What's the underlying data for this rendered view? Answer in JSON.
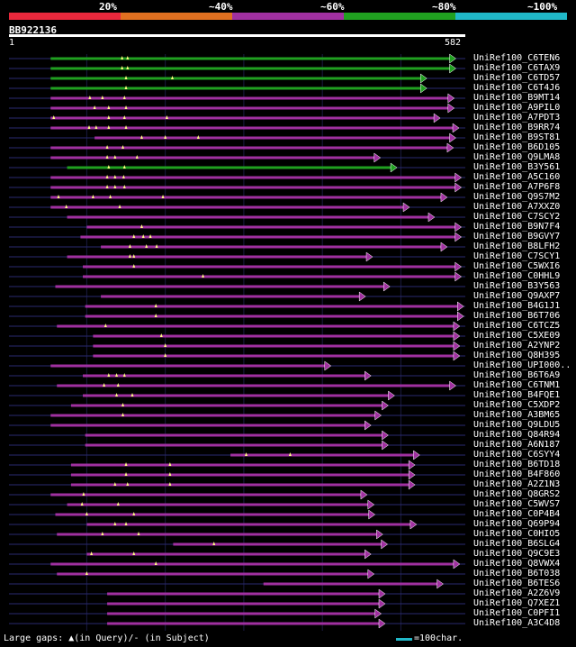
{
  "legend": {
    "segments": [
      {
        "label": "20%",
        "color": "#e8283c"
      },
      {
        "label": "~40%",
        "color": "#e07020"
      },
      {
        "label": "~60%",
        "color": "#a030a0"
      },
      {
        "label": "~80%",
        "color": "#20a020"
      },
      {
        "label": "~100%",
        "color": "#20b8c8"
      }
    ]
  },
  "query": {
    "id": "BB922136",
    "start": "1",
    "end": "582",
    "length": 582
  },
  "colors": {
    "low": "#e8283c",
    "mid": "#a030a0",
    "high": "#20a020",
    "line": "#2a2a70",
    "gap": "#ffff80"
  },
  "hits": [
    {
      "name": "UniRef100_C6TEN6",
      "start": 54,
      "end": 570,
      "cls": "high",
      "gaps": [
        145,
        152
      ]
    },
    {
      "name": "UniRef100_C6TAX9",
      "start": 54,
      "end": 570,
      "cls": "high",
      "gaps": [
        145,
        152
      ]
    },
    {
      "name": "UniRef100_C6TD57",
      "start": 54,
      "end": 533,
      "cls": "high",
      "gaps": [
        150,
        209
      ]
    },
    {
      "name": "UniRef100_C6T4J6",
      "start": 54,
      "end": 533,
      "cls": "high",
      "gaps": [
        150
      ]
    },
    {
      "name": "UniRef100_B9MT14",
      "start": 54,
      "end": 568,
      "cls": "mid",
      "gaps": [
        104,
        120,
        148
      ]
    },
    {
      "name": "UniRef100_A9PIL0",
      "start": 54,
      "end": 568,
      "cls": "mid",
      "gaps": [
        110,
        128,
        150
      ]
    },
    {
      "name": "UniRef100_A7PDT3",
      "start": 54,
      "end": 550,
      "cls": "mid",
      "gaps": [
        58,
        128,
        148,
        202
      ]
    },
    {
      "name": "UniRef100_B9RR74",
      "start": 54,
      "end": 574,
      "cls": "mid",
      "gaps": [
        103,
        112,
        128,
        150
      ]
    },
    {
      "name": "UniRef100_B9ST81",
      "start": 110,
      "end": 570,
      "cls": "mid",
      "gaps": [
        170,
        200,
        242
      ]
    },
    {
      "name": "UniRef100_B6D105",
      "start": 54,
      "end": 567,
      "cls": "mid",
      "gaps": [
        126,
        146
      ]
    },
    {
      "name": "UniRef100_Q9LMA8",
      "start": 54,
      "end": 474,
      "cls": "mid",
      "gaps": [
        126,
        136,
        164
      ]
    },
    {
      "name": "UniRef100_B3Y561",
      "start": 75,
      "end": 495,
      "cls": "high",
      "gaps": [
        128,
        148
      ]
    },
    {
      "name": "UniRef100_A5C160",
      "start": 54,
      "end": 577,
      "cls": "mid",
      "gaps": [
        126,
        136,
        147
      ]
    },
    {
      "name": "UniRef100_A7P6F8",
      "start": 54,
      "end": 577,
      "cls": "mid",
      "gaps": [
        126,
        136,
        148
      ]
    },
    {
      "name": "UniRef100_Q9S7M2",
      "start": 54,
      "end": 559,
      "cls": "mid",
      "gaps": [
        64,
        108,
        130,
        197
      ]
    },
    {
      "name": "UniRef100_A7XXZ0",
      "start": 54,
      "end": 511,
      "cls": "mid",
      "gaps": [
        74,
        142
      ]
    },
    {
      "name": "UniRef100_C7SCY2",
      "start": 75,
      "end": 543,
      "cls": "mid",
      "gaps": []
    },
    {
      "name": "UniRef100_B9N7F4",
      "start": 100,
      "end": 577,
      "cls": "mid",
      "gaps": [
        170
      ]
    },
    {
      "name": "UniRef100_B9GVY7",
      "start": 92,
      "end": 577,
      "cls": "mid",
      "gaps": [
        160,
        172,
        181
      ]
    },
    {
      "name": "UniRef100_B8LFH2",
      "start": 118,
      "end": 559,
      "cls": "mid",
      "gaps": [
        155,
        176,
        189
      ]
    },
    {
      "name": "UniRef100_C7SCY1",
      "start": 75,
      "end": 464,
      "cls": "mid",
      "gaps": [
        155,
        160
      ]
    },
    {
      "name": "UniRef100_C5WXI6",
      "start": 95,
      "end": 577,
      "cls": "mid",
      "gaps": [
        160
      ]
    },
    {
      "name": "UniRef100_C0HHL9",
      "start": 95,
      "end": 577,
      "cls": "mid",
      "gaps": [
        248
      ]
    },
    {
      "name": "UniRef100_B3Y563",
      "start": 60,
      "end": 486,
      "cls": "mid",
      "gaps": []
    },
    {
      "name": "UniRef100_Q9AXP7",
      "start": 118,
      "end": 455,
      "cls": "mid",
      "gaps": []
    },
    {
      "name": "UniRef100_B4G1J1",
      "start": 98,
      "end": 580,
      "cls": "mid",
      "gaps": [
        188
      ]
    },
    {
      "name": "UniRef100_B6T706",
      "start": 98,
      "end": 580,
      "cls": "mid",
      "gaps": [
        188
      ]
    },
    {
      "name": "UniRef100_C6TCZ5",
      "start": 62,
      "end": 575,
      "cls": "mid",
      "gaps": [
        124
      ]
    },
    {
      "name": "UniRef100_C5XE09",
      "start": 108,
      "end": 575,
      "cls": "mid",
      "gaps": [
        195
      ]
    },
    {
      "name": "UniRef100_A2YNP2",
      "start": 108,
      "end": 575,
      "cls": "mid",
      "gaps": [
        200
      ]
    },
    {
      "name": "UniRef100_Q8H395",
      "start": 108,
      "end": 575,
      "cls": "mid",
      "gaps": [
        200
      ]
    },
    {
      "name": "UniRef100_UPI000..",
      "start": 54,
      "end": 411,
      "cls": "mid",
      "gaps": []
    },
    {
      "name": "UniRef100_B6T6A9",
      "start": 95,
      "end": 462,
      "cls": "mid",
      "gaps": [
        128,
        138,
        148
      ]
    },
    {
      "name": "UniRef100_C6TNM1",
      "start": 62,
      "end": 570,
      "cls": "mid",
      "gaps": [
        122,
        140
      ]
    },
    {
      "name": "UniRef100_B4FQE1",
      "start": 95,
      "end": 492,
      "cls": "mid",
      "gaps": [
        138,
        158
      ]
    },
    {
      "name": "UniRef100_C5XDP2",
      "start": 80,
      "end": 484,
      "cls": "mid",
      "gaps": [
        146
      ]
    },
    {
      "name": "UniRef100_A3BM65",
      "start": 54,
      "end": 475,
      "cls": "mid",
      "gaps": [
        146
      ]
    },
    {
      "name": "UniRef100_Q9LDU5",
      "start": 54,
      "end": 462,
      "cls": "mid",
      "gaps": []
    },
    {
      "name": "UniRef100_Q84R94",
      "start": 98,
      "end": 484,
      "cls": "mid",
      "gaps": []
    },
    {
      "name": "UniRef100_A6N187",
      "start": 98,
      "end": 484,
      "cls": "mid",
      "gaps": []
    },
    {
      "name": "UniRef100_C6SYY4",
      "start": 283,
      "end": 524,
      "cls": "mid",
      "gaps": [
        303,
        359
      ]
    },
    {
      "name": "UniRef100_B6TD18",
      "start": 80,
      "end": 518,
      "cls": "mid",
      "gaps": [
        150,
        206
      ]
    },
    {
      "name": "UniRef100_B4F860",
      "start": 80,
      "end": 518,
      "cls": "mid",
      "gaps": [
        150,
        206
      ]
    },
    {
      "name": "UniRef100_A2Z1N3",
      "start": 80,
      "end": 518,
      "cls": "mid",
      "gaps": [
        136,
        152,
        206
      ]
    },
    {
      "name": "UniRef100_Q8GRS2",
      "start": 54,
      "end": 457,
      "cls": "mid",
      "gaps": [
        96
      ]
    },
    {
      "name": "UniRef100_C5WVS7",
      "start": 75,
      "end": 466,
      "cls": "mid",
      "gaps": [
        94,
        140
      ]
    },
    {
      "name": "UniRef100_C0P4B4",
      "start": 60,
      "end": 467,
      "cls": "mid",
      "gaps": [
        100,
        160
      ]
    },
    {
      "name": "UniRef100_Q69P94",
      "start": 100,
      "end": 520,
      "cls": "mid",
      "gaps": [
        136,
        150
      ]
    },
    {
      "name": "UniRef100_C0HIO5",
      "start": 62,
      "end": 477,
      "cls": "mid",
      "gaps": [
        120,
        166
      ]
    },
    {
      "name": "UniRef100_B6SLG4",
      "start": 210,
      "end": 483,
      "cls": "mid",
      "gaps": [
        262
      ]
    },
    {
      "name": "UniRef100_Q9C9E3",
      "start": 100,
      "end": 462,
      "cls": "mid",
      "gaps": [
        106,
        160
      ]
    },
    {
      "name": "UniRef100_Q8VWX4",
      "start": 54,
      "end": 575,
      "cls": "mid",
      "gaps": [
        188
      ]
    },
    {
      "name": "UniRef100_B6T038",
      "start": 62,
      "end": 466,
      "cls": "mid",
      "gaps": [
        100
      ]
    },
    {
      "name": "UniRef100_B6TES6",
      "start": 325,
      "end": 554,
      "cls": "mid",
      "gaps": []
    },
    {
      "name": "UniRef100_A2Z6V9",
      "start": 126,
      "end": 480,
      "cls": "mid",
      "gaps": []
    },
    {
      "name": "UniRef100_Q7XEZ1",
      "start": 126,
      "end": 480,
      "cls": "mid",
      "gaps": []
    },
    {
      "name": "UniRef100_C0PFI1",
      "start": 126,
      "end": 475,
      "cls": "mid",
      "gaps": []
    },
    {
      "name": "UniRef100_A3C4D8",
      "start": 126,
      "end": 480,
      "cls": "mid",
      "gaps": []
    }
  ],
  "footer": {
    "text": "Large gaps: ▲(in Query)/- (in Subject)",
    "scale_label": "=100char."
  }
}
